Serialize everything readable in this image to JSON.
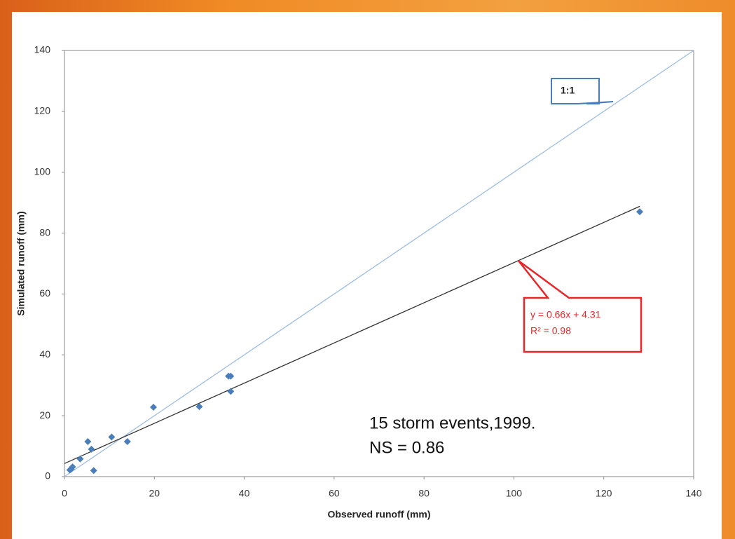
{
  "chart_data": {
    "type": "scatter",
    "x_label": "Observed runoff (mm)",
    "y_label": "Simulated runoff (mm)",
    "x": [
      1.2,
      1.5,
      1.8,
      3.5,
      5.2,
      6,
      6.5,
      10.5,
      14,
      19.8,
      30,
      36.5,
      37,
      37,
      128
    ],
    "y": [
      2.2,
      2.5,
      3.2,
      5.8,
      11.5,
      9,
      2,
      13,
      11.5,
      22.8,
      23,
      33,
      33,
      28,
      87
    ],
    "color": "#4a7ebb",
    "xlim": [
      0,
      140
    ],
    "ylim": [
      0,
      140
    ],
    "xticks": [
      0,
      20,
      40,
      60,
      80,
      100,
      120,
      140
    ],
    "yticks": [
      0,
      20,
      40,
      60,
      80,
      100,
      120,
      140
    ],
    "reference_line": {
      "label": "1:1",
      "color": "#9dbde4",
      "x": [
        0,
        140
      ],
      "y": [
        0,
        140
      ]
    },
    "trend_line": {
      "color": "#333333",
      "x": [
        0,
        128
      ],
      "y": [
        4.31,
        88.79
      ],
      "equation": "y = 0.66x + 4.31",
      "r_squared": "R² = 0.98"
    },
    "annotations": [
      "15 storm events,1999.",
      "NS = 0.86"
    ]
  }
}
